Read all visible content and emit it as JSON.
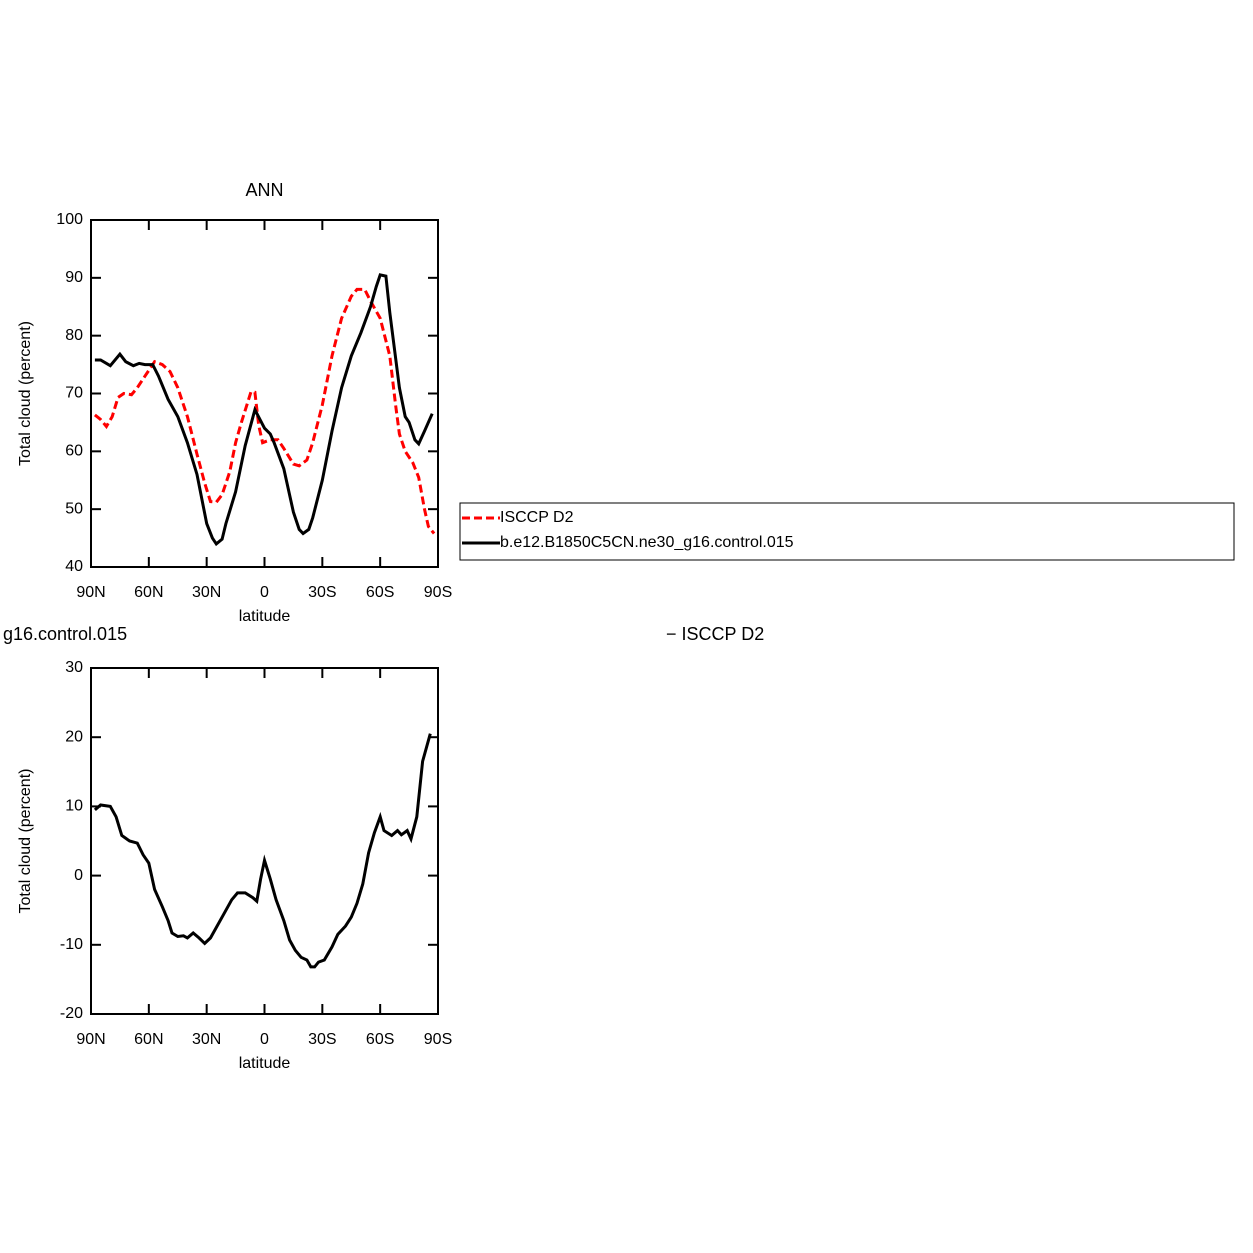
{
  "chart_data": [
    {
      "type": "line",
      "title": "ANN",
      "ylabel": "Total cloud (percent)",
      "xlabel": "latitude",
      "xlim": [
        90,
        -90
      ],
      "xticks": [
        {
          "value": 90,
          "label": "90N"
        },
        {
          "value": 60,
          "label": "60N"
        },
        {
          "value": 30,
          "label": "30N"
        },
        0,
        {
          "value": -30,
          "label": "30S"
        },
        {
          "value": -60,
          "label": "60S"
        },
        {
          "value": -90,
          "label": "90S"
        }
      ],
      "ylim": [
        40,
        100
      ],
      "yticks": [
        40,
        50,
        60,
        70,
        80,
        90,
        100
      ],
      "legend": "right",
      "series": [
        {
          "name": "ISCCP D2",
          "color": "#ff0000",
          "dashed": true,
          "x": [
            88,
            85,
            82,
            79,
            76,
            73,
            69,
            66,
            62,
            57,
            53,
            49,
            45,
            40,
            35,
            31,
            28,
            25,
            22,
            18,
            15,
            12,
            7,
            5,
            3,
            1,
            -3,
            -7,
            -10,
            -15,
            -18,
            -22,
            -25,
            -30,
            -35,
            -40,
            -45,
            -48,
            -52,
            -55,
            -60,
            -65,
            -68,
            -70,
            -73,
            -77,
            -80,
            -83,
            -85,
            -88
          ],
          "values": [
            66.3,
            65.5,
            64.3,
            66,
            69.3,
            70,
            69.8,
            71,
            73,
            75.5,
            75,
            73.8,
            71,
            66,
            59.5,
            54.5,
            51.3,
            51.2,
            52.5,
            56.5,
            61.5,
            65,
            70.3,
            70.2,
            64.5,
            61.5,
            62,
            62,
            60.5,
            57.8,
            57.5,
            58.5,
            61.5,
            68,
            76.5,
            83,
            86.8,
            88,
            88,
            86,
            83,
            76.5,
            68,
            63,
            60,
            58,
            55.5,
            50,
            47,
            45.8
          ]
        },
        {
          "name": "b.e12.B1850C5CN.ne30_g16.control.015",
          "color": "#000000",
          "dashed": false,
          "x": [
            88,
            85,
            80,
            75,
            72,
            68,
            65,
            62,
            58,
            55,
            50,
            45,
            40,
            35,
            30,
            27,
            25,
            22,
            20,
            15,
            10,
            5,
            0,
            -3,
            -5,
            -10,
            -15,
            -18,
            -20,
            -23,
            -25,
            -30,
            -35,
            -40,
            -45,
            -50,
            -55,
            -58,
            -60,
            -63,
            -65,
            -70,
            -73,
            -75,
            -78,
            -80,
            -83,
            -87
          ],
          "values": [
            75.8,
            75.8,
            74.8,
            76.8,
            75.5,
            74.8,
            75.2,
            75,
            75,
            73,
            69,
            66,
            61.5,
            56,
            47.5,
            45,
            44,
            44.8,
            47.5,
            53,
            61,
            67.2,
            64,
            63,
            61.5,
            57,
            49.5,
            46.5,
            45.8,
            46.5,
            48.5,
            55,
            63.5,
            71,
            76.5,
            80.5,
            85,
            88.5,
            90.5,
            90.3,
            84,
            71,
            66,
            65,
            62,
            61.3,
            63.5,
            66.5
          ]
        }
      ]
    },
    {
      "type": "line",
      "title": "g16.control.015",
      "subtitle": "− ISCCP D2",
      "ylabel": "Total cloud (percent)",
      "xlabel": "latitude",
      "xlim": [
        90,
        -90
      ],
      "xticks": [
        {
          "value": 90,
          "label": "90N"
        },
        {
          "value": 60,
          "label": "60N"
        },
        {
          "value": 30,
          "label": "30N"
        },
        0,
        {
          "value": -30,
          "label": "30S"
        },
        {
          "value": -60,
          "label": "60S"
        },
        {
          "value": -90,
          "label": "90S"
        }
      ],
      "ylim": [
        -20,
        30
      ],
      "yticks": [
        -20,
        -10,
        0,
        10,
        20,
        30
      ],
      "series": [
        {
          "color": "#000000",
          "dashed": false,
          "x": [
            88,
            85,
            80,
            77,
            74,
            70,
            66,
            63,
            60,
            57,
            53,
            50,
            48,
            45,
            42,
            40,
            37,
            34,
            31,
            28,
            25,
            21,
            17,
            14,
            10,
            6,
            4,
            2,
            0,
            -3,
            -6,
            -10,
            -13,
            -16,
            -19,
            -22,
            -24,
            -26,
            -28,
            -31,
            -35,
            -38,
            -42,
            -45,
            -48,
            -51,
            -54,
            -57,
            -60,
            -62,
            -66,
            -69,
            -71,
            -74,
            -76,
            -79,
            -82,
            -86
          ],
          "values": [
            9.5,
            10.2,
            10,
            8.5,
            5.8,
            5,
            4.7,
            3,
            1.8,
            -2,
            -4.5,
            -6.5,
            -8.3,
            -8.8,
            -8.7,
            -9,
            -8.3,
            -9,
            -9.8,
            -9,
            -7.5,
            -5.5,
            -3.5,
            -2.5,
            -2.5,
            -3.2,
            -3.7,
            -0.5,
            2.2,
            -0.5,
            -3.5,
            -6.5,
            -9.3,
            -10.8,
            -11.8,
            -12.2,
            -13.2,
            -13.2,
            -12.5,
            -12.2,
            -10.3,
            -8.5,
            -7.3,
            -6,
            -4,
            -1.2,
            3.3,
            6.2,
            8.5,
            6.5,
            5.8,
            6.5,
            5.9,
            6.5,
            5.3,
            8.5,
            16.5,
            20.5
          ]
        }
      ]
    }
  ]
}
